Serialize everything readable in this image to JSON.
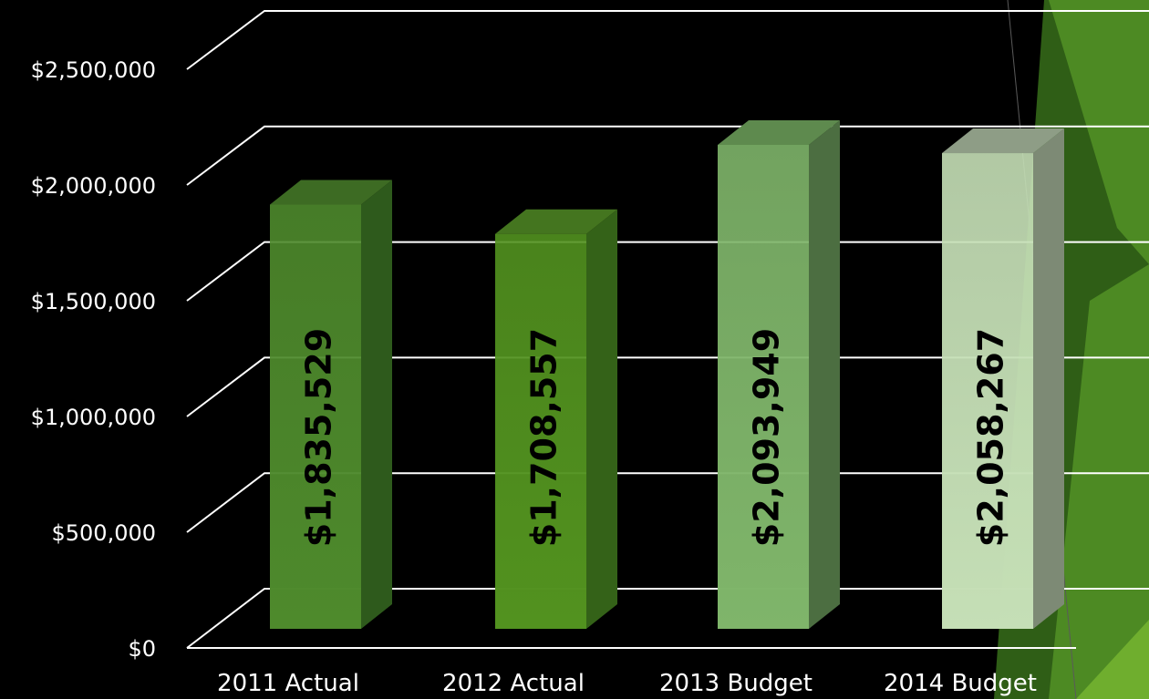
{
  "chart_data": {
    "type": "bar",
    "categories": [
      "2011 Actual",
      "2012 Actual",
      "2013 Budget",
      "2014 Budget"
    ],
    "values": [
      1835529,
      1708557,
      2093949,
      2058267
    ],
    "value_labels": [
      "$1,835,529",
      "$1,708,557",
      "$2,093,949",
      "$2,058,267"
    ],
    "y_ticks": [
      0,
      500000,
      1000000,
      1500000,
      2000000,
      2500000
    ],
    "y_tick_labels": [
      "$0",
      "$500,000",
      "$1,000,000",
      "$1,500,000",
      "$2,000,000",
      "$2,500,000"
    ],
    "ylim": [
      0,
      2500000
    ],
    "grid": true,
    "legend": "none",
    "style": "3d-columns",
    "colors": {
      "background": "#000000",
      "gridline": "#ffffff",
      "label_text": "#ffffff",
      "value_text": "#000000",
      "bar_front": [
        "#4e8a2c",
        "#52921f",
        "#7fb56a",
        "#c5dfb6"
      ],
      "bar_top": [
        "#3d6b23",
        "#44751f",
        "#5e8a4e",
        "#8e9d86"
      ],
      "bar_side": [
        "#2e5a1c",
        "#346218",
        "#4c6e41",
        "#7d8a75"
      ],
      "decor_dark": "#2f5e16",
      "decor_mid": "#4d8a23",
      "decor_light": "#6fae2e"
    }
  }
}
